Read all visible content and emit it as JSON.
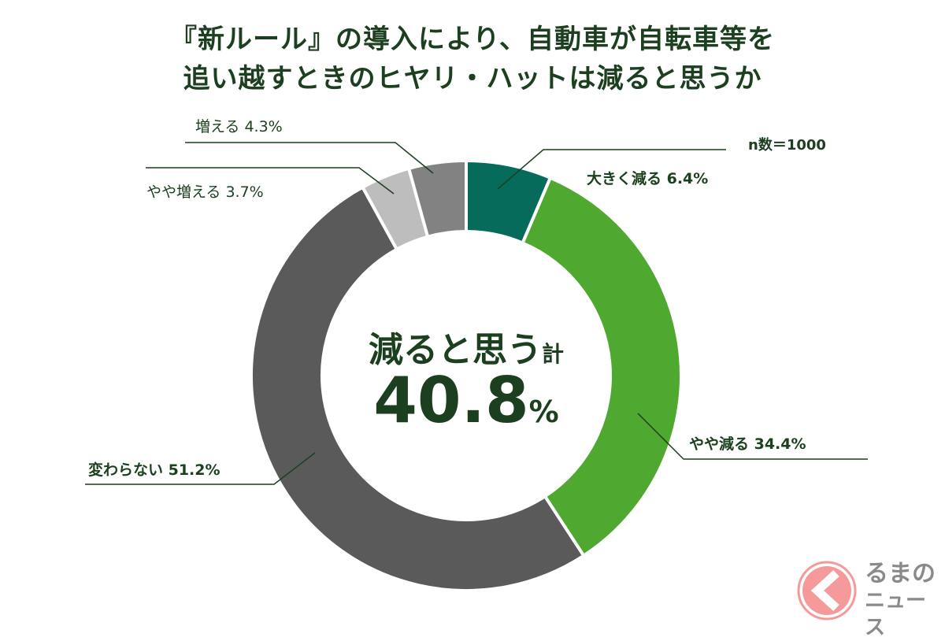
{
  "chart_data": {
    "type": "pie",
    "variant": "donut",
    "title": "『新ルール』の導入により、自動車が自転車等を 追い越すときのヒヤリ・ハットは減ると思うか",
    "title_lines": [
      "『新ルール』の導入により、自動車が自転車等を",
      "追い越すときのヒヤリ・ハットは減ると思うか"
    ],
    "sample_size_label": "n数＝1000",
    "center_label": "減ると思う",
    "center_label_suffix": "計",
    "center_value": "40.8",
    "center_unit": "%",
    "slices": [
      {
        "label": "大きく減る",
        "value": 6.4,
        "text": "大きく減る 6.4%",
        "color": "#066b5b"
      },
      {
        "label": "やや減る",
        "value": 34.4,
        "text": "やや減る 34.4%",
        "color": "#4fa82f"
      },
      {
        "label": "変わらない",
        "value": 51.2,
        "text": "変わらない 51.2%",
        "color": "#5a5a5a"
      },
      {
        "label": "やや増える",
        "value": 3.7,
        "text": "やや増える 3.7%",
        "color": "#bdbdbd"
      },
      {
        "label": "増える",
        "value": 4.3,
        "text": "増える 4.3%",
        "color": "#828282"
      }
    ]
  },
  "logo": {
    "text_line1": "るまの",
    "text_line2": "ニュース",
    "color": "#f59a9a"
  }
}
